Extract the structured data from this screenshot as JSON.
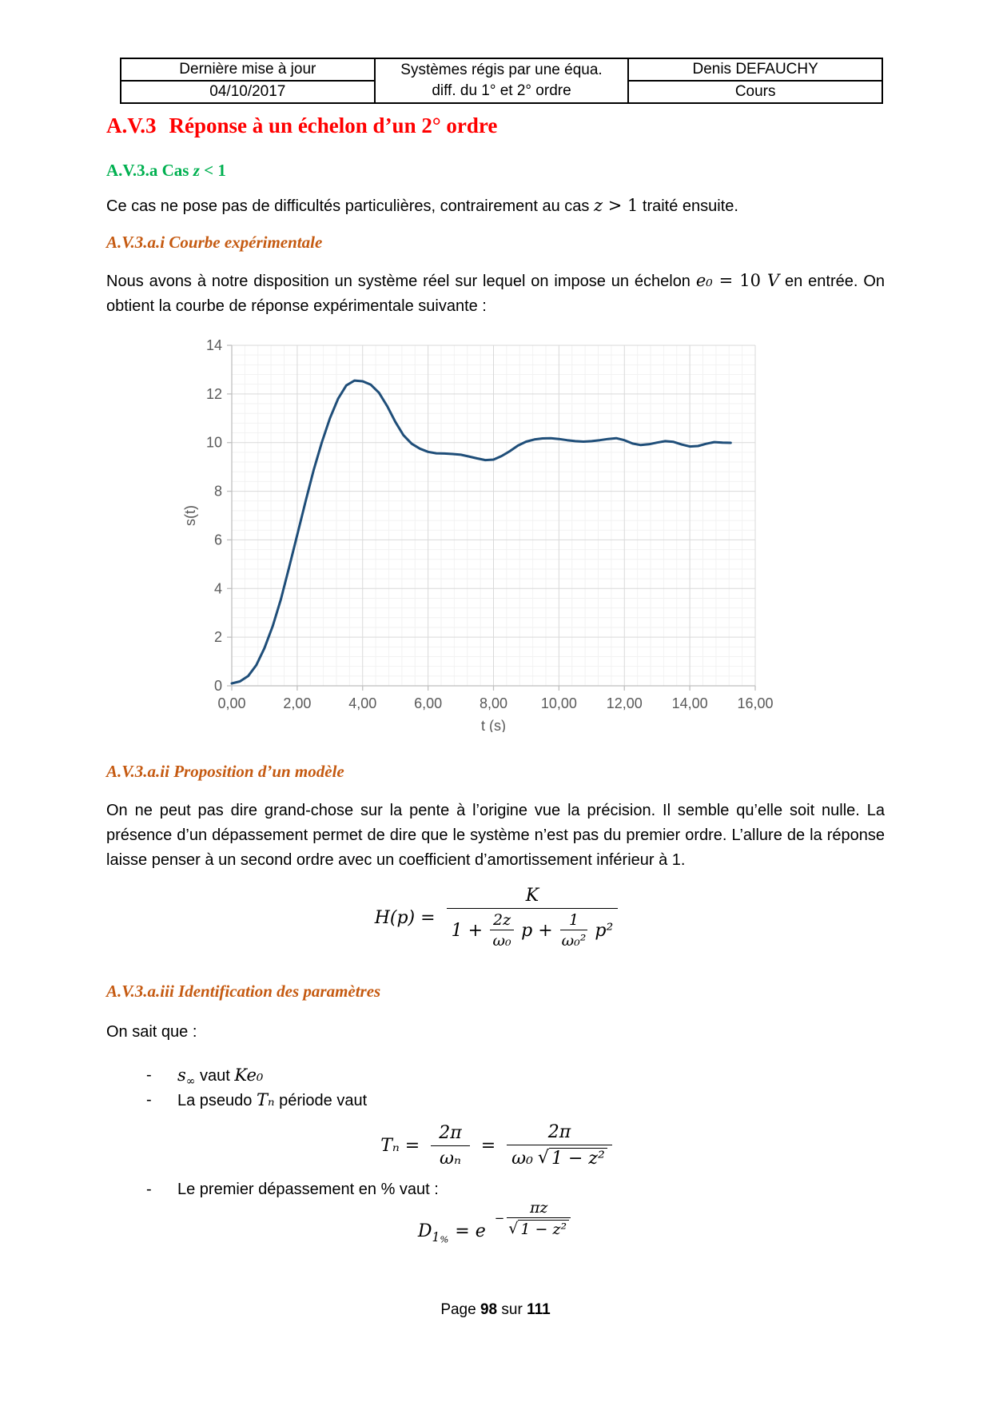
{
  "header_table": {
    "update_label": "Dernière mise à jour",
    "update_date": "04/10/2017",
    "course_line1": "Systèmes régis par une équa.",
    "course_line2": "diff. du 1° et 2° ordre",
    "author": "Denis DEFAUCHY",
    "doc_type": "Cours"
  },
  "headings": {
    "title_num": "A.V.3",
    "title_text": "Réponse à un échelon d’un 2° ordre",
    "sub_a_pre": "A.V.3.a Cas ",
    "sub_a_var": "z",
    "sub_a_post": " < 1",
    "sub_ai": "A.V.3.a.i Courbe expérimentale",
    "sub_aii": "A.V.3.a.ii Proposition d’un modèle",
    "sub_aiii": "A.V.3.a.iii Identification des paramètres"
  },
  "paragraphs": {
    "p1_pre": "Ce cas ne pose pas de difficultés particulières, contrairement au cas ",
    "p1_var": "z",
    "p1_rel": " > 1",
    "p1_post": " traité ensuite.",
    "p2_pre": "Nous avons à notre disposition un système réel sur lequel on impose un échelon ",
    "p2_m1": "e₀",
    "p2_m2": " = 10 ",
    "p2_m3": "V",
    "p2_post": " en entrée. On obtient la courbe de réponse expérimentale suivante :",
    "p3": "On ne peut pas dire grand-chose sur la pente à l’origine vue la précision. Il semble qu’elle soit nulle. La présence d’un dépassement permet de dire que le système n’est pas du premier ordre. L’allure de la réponse laisse penser à un second ordre avec un coefficient d’amortissement inférieur à 1.",
    "know": "On sait que :"
  },
  "bullets": {
    "dash": "-",
    "b1_s": "s",
    "b1_sub": "∞",
    "b1_mid": " vaut ",
    "b1_k": "Ke₀",
    "b2_pre": "La pseudo ",
    "b2_t": "Tₙ",
    "b2_post": " période vaut",
    "b3": "Le premier dépassement en % vaut :"
  },
  "formulas": {
    "hp": {
      "lhs": "H(p) =",
      "num": "K",
      "d1": "1 +",
      "f1n": "2z",
      "f1d": "ω₀",
      "d2": "p +",
      "f2n": "1",
      "f2d": "ω₀²",
      "d3": "p²"
    },
    "tn": {
      "lhs": "Tₙ =",
      "f1n": "2π",
      "f1d": "ωₙ",
      "eq": "=",
      "f2n": "2π",
      "f2d_pre": "ω₀",
      "sqrt": "√",
      "rad": "1 − z²"
    },
    "d1": {
      "base": "D",
      "sub": "1",
      "subsub": "%",
      "eq": "= e",
      "minus": "−",
      "en": "πz",
      "sqrt": "√",
      "rad": "1 − z²"
    }
  },
  "footer": {
    "pre": "Page ",
    "page": "98",
    "mid": " sur ",
    "total": "111"
  },
  "chart_data": {
    "type": "line",
    "title": "",
    "xlabel": "t (s)",
    "ylabel": "s(t)",
    "xlim": [
      0,
      16
    ],
    "ylim": [
      0,
      14
    ],
    "x_tick_values": [
      0,
      2,
      4,
      6,
      8,
      10,
      12,
      14,
      16
    ],
    "x_tick_labels": [
      "0,00",
      "2,00",
      "4,00",
      "6,00",
      "8,00",
      "10,00",
      "12,00",
      "14,00",
      "16,00"
    ],
    "y_tick_values": [
      0,
      2,
      4,
      6,
      8,
      10,
      12,
      14
    ],
    "y_tick_labels": [
      "0",
      "2",
      "4",
      "6",
      "8",
      "10",
      "12",
      "14"
    ],
    "minor_step": 0.4,
    "grid": "on",
    "legend": "none",
    "line_color": "#1F4E79",
    "axis_color": "#BFBFBF",
    "label_color": "#595959",
    "major_grid_color": "#D9D9D9",
    "minor_grid_color": "#F2F2F2",
    "series": [
      {
        "name": "s(t)",
        "x": [
          0,
          0.25,
          0.5,
          0.75,
          1,
          1.25,
          1.5,
          1.75,
          2,
          2.25,
          2.5,
          2.75,
          3,
          3.25,
          3.5,
          3.75,
          4,
          4.25,
          4.5,
          4.75,
          5,
          5.25,
          5.5,
          5.75,
          6,
          6.25,
          6.5,
          6.75,
          7,
          7.25,
          7.5,
          7.75,
          8,
          8.25,
          8.5,
          8.75,
          9,
          9.25,
          9.5,
          9.75,
          10,
          10.25,
          10.5,
          10.75,
          11,
          11.25,
          11.5,
          11.75,
          12,
          12.25,
          12.5,
          12.75,
          13,
          13.25,
          13.5,
          13.75,
          14,
          14.25,
          14.5,
          14.75,
          15,
          15.25
        ],
        "y": [
          0.1,
          0.18,
          0.4,
          0.85,
          1.55,
          2.45,
          3.55,
          4.85,
          6.2,
          7.55,
          8.85,
          10.0,
          11.0,
          11.8,
          12.35,
          12.55,
          12.52,
          12.38,
          12.05,
          11.5,
          10.85,
          10.3,
          9.95,
          9.75,
          9.62,
          9.56,
          9.55,
          9.53,
          9.5,
          9.43,
          9.35,
          9.28,
          9.3,
          9.45,
          9.65,
          9.88,
          10.04,
          10.13,
          10.17,
          10.18,
          10.15,
          10.1,
          10.06,
          10.04,
          10.06,
          10.1,
          10.15,
          10.18,
          10.1,
          9.96,
          9.9,
          9.93,
          10.0,
          10.06,
          10.03,
          9.92,
          9.84,
          9.86,
          9.95,
          10.02,
          10.0,
          9.99
        ]
      }
    ]
  }
}
